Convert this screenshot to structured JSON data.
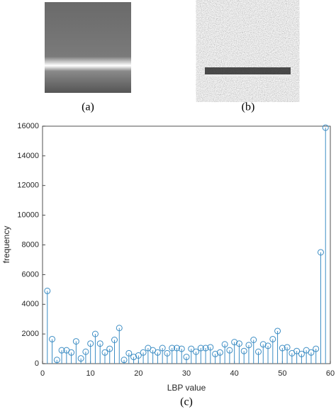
{
  "figure": {
    "labels": [
      "(a)",
      "(b)",
      "(c)"
    ]
  },
  "chart_data": {
    "type": "stem",
    "x_label": "LBP value",
    "y_label": "frequency",
    "x": [
      1,
      2,
      3,
      4,
      5,
      6,
      7,
      8,
      9,
      10,
      11,
      12,
      13,
      14,
      15,
      16,
      17,
      18,
      19,
      20,
      21,
      22,
      23,
      24,
      25,
      26,
      27,
      28,
      29,
      30,
      31,
      32,
      33,
      34,
      35,
      36,
      37,
      38,
      39,
      40,
      41,
      42,
      43,
      44,
      45,
      46,
      47,
      48,
      49,
      50,
      51,
      52,
      53,
      54,
      55,
      56,
      57,
      58,
      59
    ],
    "values": [
      4900,
      1650,
      250,
      900,
      900,
      750,
      1500,
      350,
      800,
      1350,
      2000,
      1350,
      750,
      1000,
      1600,
      2400,
      250,
      700,
      450,
      550,
      750,
      1050,
      900,
      750,
      1050,
      700,
      1050,
      1050,
      1000,
      450,
      1000,
      800,
      1050,
      1050,
      1100,
      650,
      750,
      1300,
      900,
      1450,
      1350,
      850,
      1250,
      1600,
      800,
      1300,
      1200,
      1650,
      2200,
      1050,
      1100,
      700,
      850,
      650,
      900,
      750,
      1000,
      7500,
      15900
    ],
    "color": "#3c8dc4",
    "xlim": [
      0,
      60
    ],
    "xticks": [
      0,
      10,
      20,
      30,
      40,
      50,
      60
    ],
    "ylim": [
      0,
      16000
    ],
    "yticks": [
      0,
      2000,
      4000,
      6000,
      8000,
      10000,
      12000,
      14000,
      16000
    ],
    "grid": false
  }
}
